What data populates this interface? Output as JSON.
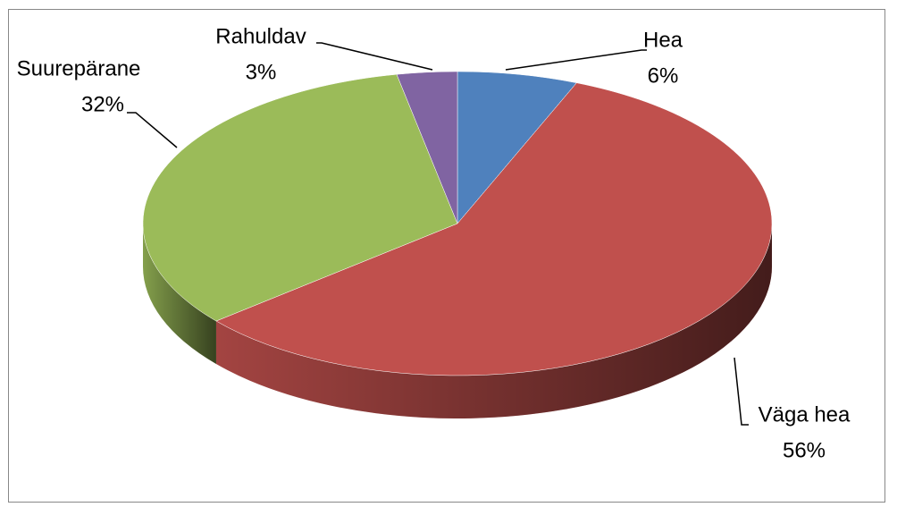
{
  "chart_data": {
    "type": "pie",
    "categories": [
      "Hea",
      "Väga hea",
      "Suurepärane",
      "Rahuldav"
    ],
    "values": [
      6,
      56,
      32,
      3
    ],
    "value_labels": [
      "6%",
      "56%",
      "32%",
      "3%"
    ],
    "colors": [
      "#4f81bd",
      "#c0504d",
      "#9bbb59",
      "#8064a2"
    ]
  }
}
